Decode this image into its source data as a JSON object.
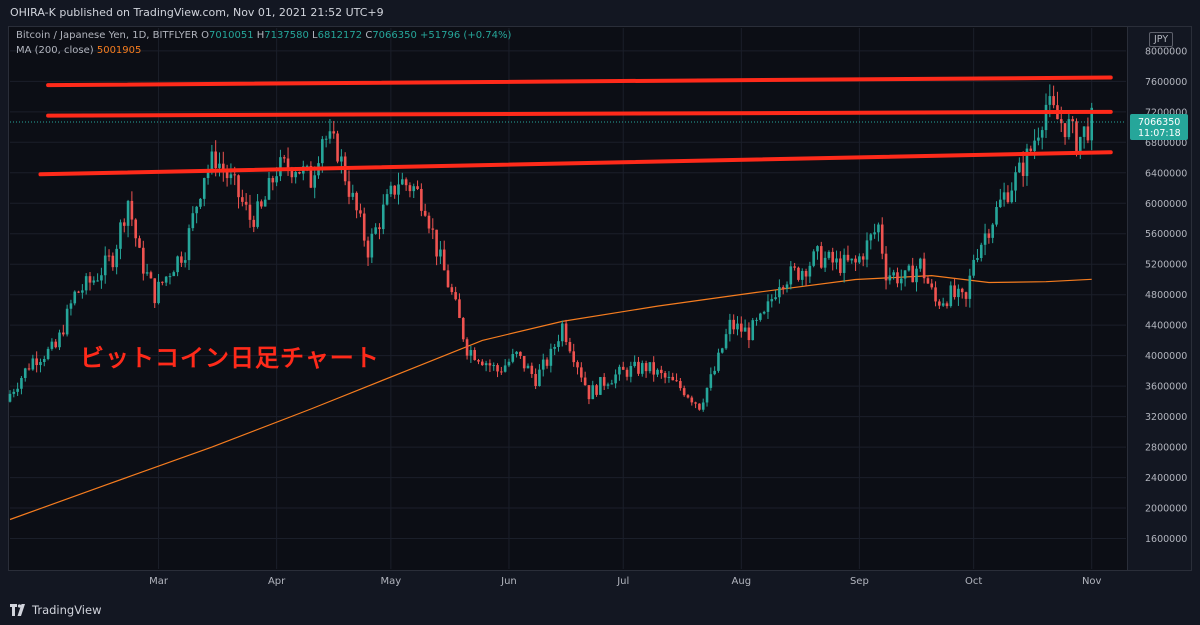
{
  "header": {
    "published": "OHIRA-K published on TradingView.com, Nov 01, 2021 21:52 UTC+9"
  },
  "legend": {
    "symbol": "Bitcoin / Japanese Yen, 1D, BITFLYER",
    "open_label": "O",
    "open": "7010051",
    "high_label": "H",
    "high": "7137580",
    "low_label": "L",
    "low": "6812172",
    "close_label": "C",
    "close": "7066350",
    "change": "+51796 (+0.74%)",
    "ma_label": "MA (200, close)",
    "ma_value": "5001905"
  },
  "currency": "JPY",
  "annotation": "ビットコイン日足チャート",
  "price_tag": {
    "price": "7066350",
    "countdown": "11:07:18"
  },
  "footer": {
    "brand": "TradingView"
  },
  "colors": {
    "up": "#26a69a",
    "down": "#ef5350",
    "ma": "#f57c1f",
    "trendline": "#ff2a1a",
    "annotation": "#ff2a1a",
    "background": "#0c0e15"
  },
  "chart_data": {
    "type": "candlestick",
    "ylim": [
      1200000,
      8300000
    ],
    "yticks": [
      "8000000",
      "7600000",
      "7200000",
      "6800000",
      "6400000",
      "6000000",
      "5600000",
      "5200000",
      "4800000",
      "4400000",
      "4000000",
      "3600000",
      "3200000",
      "2800000",
      "2400000",
      "2000000",
      "1600000"
    ],
    "xlim": [
      "2021-01-21",
      "2021-11-10"
    ],
    "xticks": [
      {
        "label": "Mar",
        "date": "2021-03-01"
      },
      {
        "label": "Apr",
        "date": "2021-04-01"
      },
      {
        "label": "May",
        "date": "2021-05-01"
      },
      {
        "label": "Jun",
        "date": "2021-06-01"
      },
      {
        "label": "Jul",
        "date": "2021-07-01"
      },
      {
        "label": "Aug",
        "date": "2021-08-01"
      },
      {
        "label": "Sep",
        "date": "2021-09-01"
      },
      {
        "label": "Oct",
        "date": "2021-10-01"
      },
      {
        "label": "Nov",
        "date": "2021-11-01"
      }
    ],
    "close_series": [
      {
        "date": "2021-01-21",
        "value": 3500000
      },
      {
        "date": "2021-01-27",
        "value": 3950000
      },
      {
        "date": "2021-02-02",
        "value": 4100000
      },
      {
        "date": "2021-02-07",
        "value": 4800000
      },
      {
        "date": "2021-02-12",
        "value": 5000000
      },
      {
        "date": "2021-02-17",
        "value": 5300000
      },
      {
        "date": "2021-02-21",
        "value": 6050000
      },
      {
        "date": "2021-02-24",
        "value": 5300000
      },
      {
        "date": "2021-02-28",
        "value": 4800000
      },
      {
        "date": "2021-03-05",
        "value": 5200000
      },
      {
        "date": "2021-03-08",
        "value": 5400000
      },
      {
        "date": "2021-03-13",
        "value": 6400000
      },
      {
        "date": "2021-03-16",
        "value": 6600000
      },
      {
        "date": "2021-03-21",
        "value": 6200000
      },
      {
        "date": "2021-03-25",
        "value": 5800000
      },
      {
        "date": "2021-03-28",
        "value": 5900000
      },
      {
        "date": "2021-04-01",
        "value": 6450000
      },
      {
        "date": "2021-04-06",
        "value": 6500000
      },
      {
        "date": "2021-04-10",
        "value": 6300000
      },
      {
        "date": "2021-04-13",
        "value": 6900000
      },
      {
        "date": "2021-04-17",
        "value": 6700000
      },
      {
        "date": "2021-04-20",
        "value": 6200000
      },
      {
        "date": "2021-04-25",
        "value": 5400000
      },
      {
        "date": "2021-04-29",
        "value": 5900000
      },
      {
        "date": "2021-05-03",
        "value": 6300000
      },
      {
        "date": "2021-05-07",
        "value": 6200000
      },
      {
        "date": "2021-05-10",
        "value": 6000000
      },
      {
        "date": "2021-05-13",
        "value": 5400000
      },
      {
        "date": "2021-05-17",
        "value": 4800000
      },
      {
        "date": "2021-05-21",
        "value": 4100000
      },
      {
        "date": "2021-05-24",
        "value": 4000000
      },
      {
        "date": "2021-05-29",
        "value": 3800000
      },
      {
        "date": "2021-06-03",
        "value": 4000000
      },
      {
        "date": "2021-06-08",
        "value": 3700000
      },
      {
        "date": "2021-06-12",
        "value": 4000000
      },
      {
        "date": "2021-06-15",
        "value": 4400000
      },
      {
        "date": "2021-06-19",
        "value": 3900000
      },
      {
        "date": "2021-06-22",
        "value": 3500000
      },
      {
        "date": "2021-06-27",
        "value": 3700000
      },
      {
        "date": "2021-07-02",
        "value": 3800000
      },
      {
        "date": "2021-07-07",
        "value": 3850000
      },
      {
        "date": "2021-07-12",
        "value": 3700000
      },
      {
        "date": "2021-07-17",
        "value": 3550000
      },
      {
        "date": "2021-07-21",
        "value": 3350000
      },
      {
        "date": "2021-07-25",
        "value": 3800000
      },
      {
        "date": "2021-07-29",
        "value": 4400000
      },
      {
        "date": "2021-08-03",
        "value": 4300000
      },
      {
        "date": "2021-08-07",
        "value": 4500000
      },
      {
        "date": "2021-08-11",
        "value": 5000000
      },
      {
        "date": "2021-08-16",
        "value": 5100000
      },
      {
        "date": "2021-08-21",
        "value": 5300000
      },
      {
        "date": "2021-08-26",
        "value": 5200000
      },
      {
        "date": "2021-08-31",
        "value": 5200000
      },
      {
        "date": "2021-09-06",
        "value": 5700000
      },
      {
        "date": "2021-09-08",
        "value": 5100000
      },
      {
        "date": "2021-09-13",
        "value": 5000000
      },
      {
        "date": "2021-09-17",
        "value": 5200000
      },
      {
        "date": "2021-09-21",
        "value": 4700000
      },
      {
        "date": "2021-09-25",
        "value": 4800000
      },
      {
        "date": "2021-09-29",
        "value": 4700000
      },
      {
        "date": "2021-10-01",
        "value": 5300000
      },
      {
        "date": "2021-10-05",
        "value": 5700000
      },
      {
        "date": "2021-10-09",
        "value": 6100000
      },
      {
        "date": "2021-10-13",
        "value": 6400000
      },
      {
        "date": "2021-10-16",
        "value": 6700000
      },
      {
        "date": "2021-10-20",
        "value": 7300000
      },
      {
        "date": "2021-10-23",
        "value": 7100000
      },
      {
        "date": "2021-10-26",
        "value": 7000000
      },
      {
        "date": "2021-10-28",
        "value": 6800000
      },
      {
        "date": "2021-11-01",
        "value": 7066350
      }
    ],
    "ma_series": [
      {
        "date": "2021-01-21",
        "value": 1850000
      },
      {
        "date": "2021-02-15",
        "value": 2300000
      },
      {
        "date": "2021-03-15",
        "value": 2800000
      },
      {
        "date": "2021-04-10",
        "value": 3300000
      },
      {
        "date": "2021-05-05",
        "value": 3800000
      },
      {
        "date": "2021-05-25",
        "value": 4200000
      },
      {
        "date": "2021-06-15",
        "value": 4450000
      },
      {
        "date": "2021-07-10",
        "value": 4650000
      },
      {
        "date": "2021-08-05",
        "value": 4830000
      },
      {
        "date": "2021-08-31",
        "value": 5000000
      },
      {
        "date": "2021-09-20",
        "value": 5050000
      },
      {
        "date": "2021-10-05",
        "value": 4960000
      },
      {
        "date": "2021-10-20",
        "value": 4970000
      },
      {
        "date": "2021-11-01",
        "value": 5001905
      }
    ],
    "trendlines": [
      {
        "from": {
          "date": "2021-01-31",
          "value": 7550000
        },
        "to": {
          "date": "2021-11-06",
          "value": 7650000
        }
      },
      {
        "from": {
          "date": "2021-01-31",
          "value": 7150000
        },
        "to": {
          "date": "2021-11-06",
          "value": 7200000
        }
      },
      {
        "from": {
          "date": "2021-01-29",
          "value": 6380000
        },
        "to": {
          "date": "2021-11-06",
          "value": 6670000
        }
      }
    ]
  }
}
